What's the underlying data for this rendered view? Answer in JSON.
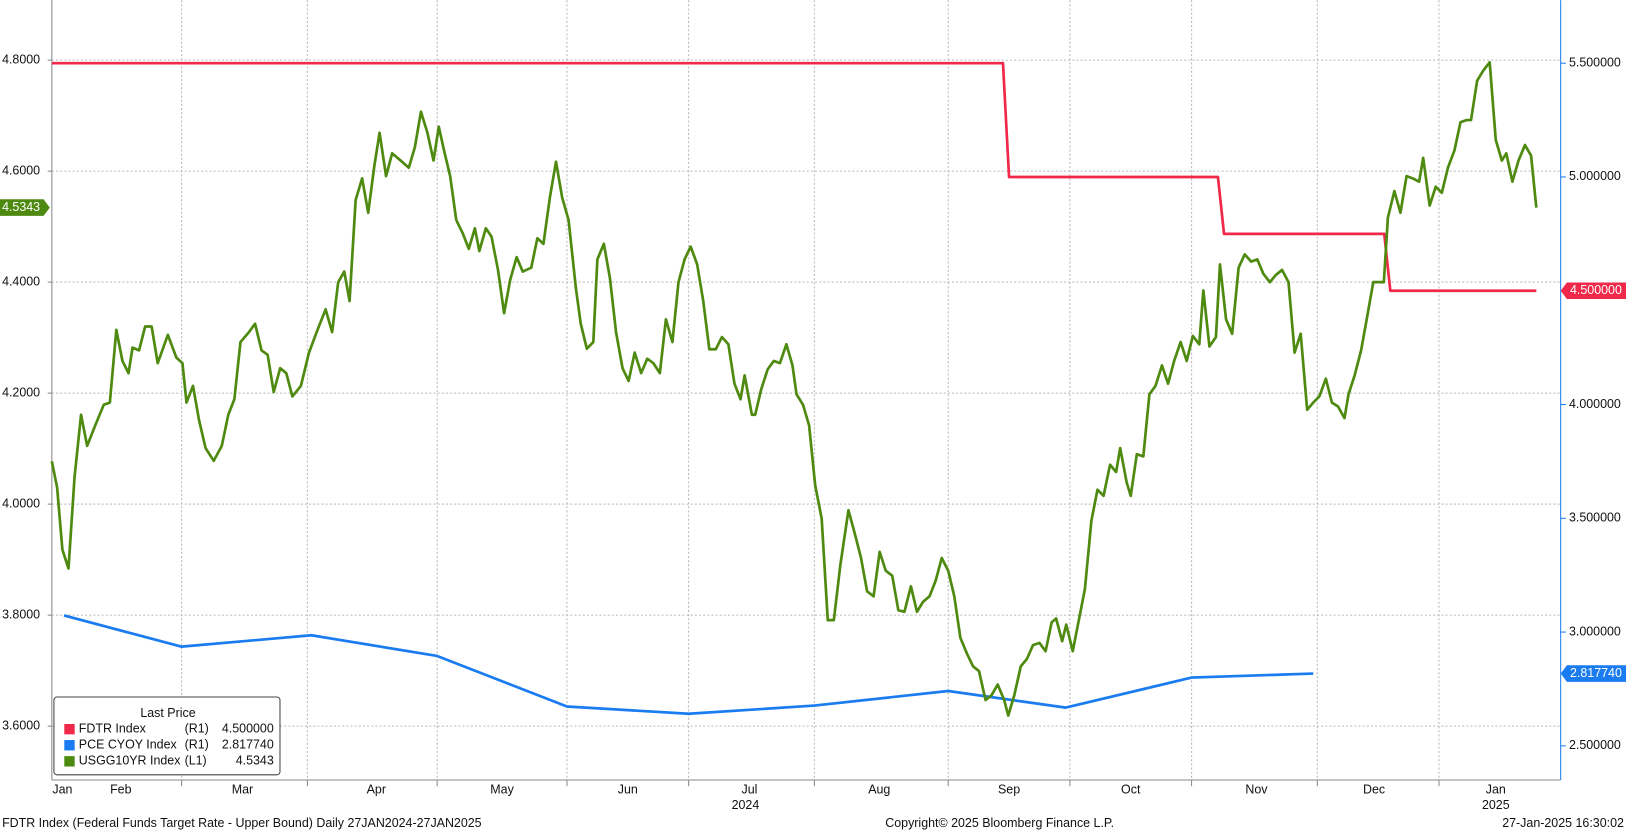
{
  "chart_data": {
    "type": "line",
    "legend_title": "Last Price",
    "footer_left": "FDTR Index (Federal Funds Target Rate - Upper Bound)  Daily 27JAN2024-27JAN2025",
    "footer_center": "Copyright© 2025 Bloomberg Finance L.P.",
    "footer_right": "27-Jan-2025 16:30:02",
    "xlim": [
      0,
      372
    ],
    "xticks": [
      {
        "value": 2.6,
        "label": "Jan"
      },
      {
        "value": 17,
        "label": "Feb"
      },
      {
        "value": 47,
        "label": "Mar"
      },
      {
        "value": 80,
        "label": "Apr"
      },
      {
        "value": 111,
        "label": "May"
      },
      {
        "value": 142,
        "label": "Jun"
      },
      {
        "value": 172,
        "label": "Jul"
      },
      {
        "value": 204,
        "label": "Aug"
      },
      {
        "value": 236,
        "label": "Sep"
      },
      {
        "value": 266,
        "label": "Oct"
      },
      {
        "value": 297,
        "label": "Nov"
      },
      {
        "value": 326,
        "label": "Dec"
      },
      {
        "value": 356,
        "label": "Jan"
      }
    ],
    "year_labels": [
      {
        "value": 171,
        "label": "2024"
      },
      {
        "value": 356,
        "label": "2025"
      }
    ],
    "xgrid": [
      32,
      63,
      95,
      127,
      157,
      188,
      221,
      251,
      281,
      312,
      342
    ],
    "ylim": [
      3.503,
      4.908
    ],
    "yticks": [
      {
        "value": 3.6,
        "label": "3.6000"
      },
      {
        "value": 3.8,
        "label": "3.8000"
      },
      {
        "value": 4.0,
        "label": "4.0000"
      },
      {
        "value": 4.2,
        "label": "4.2000"
      },
      {
        "value": 4.4,
        "label": "4.4000"
      },
      {
        "value": 4.6,
        "label": "4.6000"
      },
      {
        "value": 4.8,
        "label": "4.8000"
      }
    ],
    "y2lim": [
      2.35,
      5.777
    ],
    "y2ticks": [
      {
        "value": 2.5,
        "label": "2.500000"
      },
      {
        "value": 3.0,
        "label": "3.000000"
      },
      {
        "value": 3.5,
        "label": "3.500000"
      },
      {
        "value": 4.0,
        "label": "4.000000"
      },
      {
        "value": 4.5,
        "label": "4.500000"
      },
      {
        "value": 5.0,
        "label": "5.000000"
      },
      {
        "value": 5.5,
        "label": "5.500000"
      }
    ],
    "grid": true,
    "series": [
      {
        "name": "FDTR Index",
        "axis_label": "(R1)",
        "color": "#f0284a",
        "axis": "y2",
        "last_label": "4.500000",
        "x": [
          0,
          234.5,
          236,
          287.5,
          289,
          328.5,
          330,
          366
        ],
        "values": [
          5.5,
          5.5,
          5.0,
          5.0,
          4.75,
          4.75,
          4.5,
          4.5
        ]
      },
      {
        "name": "PCE CYOY Index",
        "axis_label": "(R1)",
        "color": "#1a7cf0",
        "axis": "y2",
        "last_label": "2.817740",
        "x": [
          3,
          32,
          64,
          95,
          127,
          157,
          188,
          221,
          250,
          281,
          311
        ],
        "values": [
          3.073,
          2.936,
          2.986,
          2.895,
          2.673,
          2.641,
          2.677,
          2.741,
          2.668,
          2.8,
          2.81774
        ]
      },
      {
        "name": "USGG10YR Index",
        "axis_label": "(L1)",
        "color": "#4f8a10",
        "last_label": "4.5343",
        "x": [
          0,
          1.3,
          2.6,
          4.1,
          5.6,
          7.2,
          8.7,
          10.7,
          12.8,
          14.3,
          15.9,
          17.4,
          18.9,
          19.9,
          21.5,
          23.0,
          24.6,
          26.1,
          28.6,
          30.7,
          32.2,
          33.2,
          34.8,
          36.3,
          37.9,
          39.9,
          41.9,
          43.5,
          45.0,
          46.5,
          48.6,
          50.1,
          51.7,
          53.2,
          54.7,
          56.3,
          57.8,
          59.3,
          61.4,
          63.4,
          65.5,
          67.5,
          69.1,
          70.6,
          72.1,
          73.4,
          74.9,
          76.5,
          78.0,
          79.5,
          80.8,
          82.4,
          83.9,
          86.0,
          88.0,
          89.5,
          91.0,
          92.6,
          94.1,
          95.4,
          96.7,
          98.2,
          99.7,
          101.3,
          102.8,
          104.3,
          105.4,
          107.0,
          108.4,
          110.0,
          111.5,
          113.0,
          114.6,
          116.1,
          118.2,
          119.7,
          121.2,
          122.8,
          124.3,
          125.8,
          127.4,
          129.2,
          130.4,
          131.9,
          133.5,
          134.5,
          136.1,
          137.6,
          139.1,
          140.7,
          142.2,
          143.7,
          145.3,
          146.8,
          148.3,
          149.9,
          151.4,
          153.0,
          154.5,
          156.0,
          157.5,
          159.1,
          160.6,
          162.1,
          163.7,
          165.2,
          166.8,
          168.3,
          169.8,
          170.8,
          172.6,
          173.4,
          174.9,
          176.5,
          178.0,
          179.5,
          181.1,
          182.6,
          183.6,
          185.2,
          186.7,
          188.2,
          189.8,
          191.3,
          192.8,
          194.4,
          196.4,
          198.0,
          199.5,
          201.0,
          202.6,
          204.1,
          205.6,
          207.2,
          208.7,
          210.2,
          211.8,
          213.3,
          214.8,
          216.4,
          217.9,
          219.4,
          221.0,
          222.5,
          224.0,
          225.6,
          227.1,
          228.6,
          230.2,
          231.7,
          233.2,
          234.8,
          235.8,
          237.3,
          238.9,
          240.4,
          241.9,
          243.5,
          245.0,
          246.5,
          247.6,
          249.1,
          250.1,
          251.7,
          253.2,
          254.7,
          256.3,
          257.8,
          259.3,
          260.9,
          262.4,
          263.4,
          265.0,
          266.0,
          267.5,
          269.1,
          270.6,
          272.1,
          273.7,
          275.2,
          276.7,
          278.3,
          279.8,
          281.3,
          282.9,
          283.9,
          285.4,
          287.0,
          288.0,
          289.5,
          291.0,
          292.6,
          294.1,
          295.7,
          297.2,
          298.7,
          300.3,
          301.8,
          303.3,
          304.9,
          306.4,
          307.9,
          309.5,
          311.0,
          312.5,
          314.1,
          315.6,
          317.1,
          318.7,
          319.7,
          321.2,
          322.8,
          324.3,
          325.8,
          327.4,
          328.4,
          329.4,
          331.0,
          332.5,
          334.0,
          335.5,
          337.1,
          338.1,
          339.7,
          341.2,
          342.7,
          344.2,
          345.8,
          347.3,
          348.8,
          349.9,
          351.4,
          352.9,
          354.5,
          356.0,
          357.5,
          358.6,
          360.1,
          361.6,
          363.2,
          364.7,
          366.0
        ],
        "values": [
          4.077,
          4.03,
          3.918,
          3.884,
          4.049,
          4.161,
          4.105,
          4.142,
          4.179,
          4.183,
          4.314,
          4.258,
          4.236,
          4.282,
          4.277,
          4.32,
          4.32,
          4.254,
          4.305,
          4.264,
          4.254,
          4.183,
          4.213,
          4.151,
          4.101,
          4.078,
          4.105,
          4.161,
          4.189,
          4.292,
          4.31,
          4.325,
          4.277,
          4.269,
          4.202,
          4.245,
          4.236,
          4.194,
          4.213,
          4.273,
          4.314,
          4.351,
          4.31,
          4.4,
          4.419,
          4.366,
          4.548,
          4.587,
          4.525,
          4.609,
          4.669,
          4.591,
          4.632,
          4.619,
          4.606,
          4.643,
          4.707,
          4.669,
          4.619,
          4.68,
          4.637,
          4.591,
          4.512,
          4.488,
          4.46,
          4.497,
          4.456,
          4.497,
          4.482,
          4.422,
          4.344,
          4.404,
          4.445,
          4.419,
          4.426,
          4.479,
          4.469,
          4.553,
          4.617,
          4.553,
          4.512,
          4.389,
          4.325,
          4.28,
          4.292,
          4.441,
          4.469,
          4.407,
          4.31,
          4.245,
          4.222,
          4.273,
          4.236,
          4.262,
          4.254,
          4.236,
          4.333,
          4.292,
          4.4,
          4.441,
          4.464,
          4.432,
          4.366,
          4.279,
          4.279,
          4.301,
          4.288,
          4.217,
          4.189,
          4.232,
          4.161,
          4.161,
          4.207,
          4.243,
          4.258,
          4.254,
          4.288,
          4.25,
          4.198,
          4.179,
          4.142,
          4.034,
          3.974,
          3.791,
          3.791,
          3.89,
          3.989,
          3.946,
          3.903,
          3.843,
          3.834,
          3.914,
          3.88,
          3.871,
          3.809,
          3.806,
          3.852,
          3.806,
          3.824,
          3.834,
          3.862,
          3.903,
          3.88,
          3.834,
          3.759,
          3.731,
          3.708,
          3.699,
          3.647,
          3.656,
          3.675,
          3.647,
          3.619,
          3.656,
          3.708,
          3.721,
          3.746,
          3.75,
          3.735,
          3.787,
          3.794,
          3.753,
          3.783,
          3.735,
          3.791,
          3.847,
          3.97,
          4.026,
          4.015,
          4.071,
          4.058,
          4.101,
          4.039,
          4.015,
          4.09,
          4.086,
          4.198,
          4.213,
          4.25,
          4.217,
          4.258,
          4.292,
          4.258,
          4.303,
          4.288,
          4.385,
          4.284,
          4.301,
          4.432,
          4.333,
          4.307,
          4.426,
          4.45,
          4.437,
          4.441,
          4.415,
          4.4,
          4.413,
          4.422,
          4.4,
          4.273,
          4.307,
          4.17,
          4.183,
          4.194,
          4.226,
          4.183,
          4.176,
          4.155,
          4.198,
          4.232,
          4.277,
          4.338,
          4.4,
          4.4,
          4.4,
          4.516,
          4.564,
          4.525,
          4.591,
          4.587,
          4.581,
          4.624,
          4.538,
          4.572,
          4.561,
          4.606,
          4.637,
          4.688,
          4.692,
          4.692,
          4.763,
          4.781,
          4.796,
          4.656,
          4.619,
          4.632,
          4.581,
          4.619,
          4.647,
          4.628,
          4.5343
        ]
      }
    ]
  }
}
